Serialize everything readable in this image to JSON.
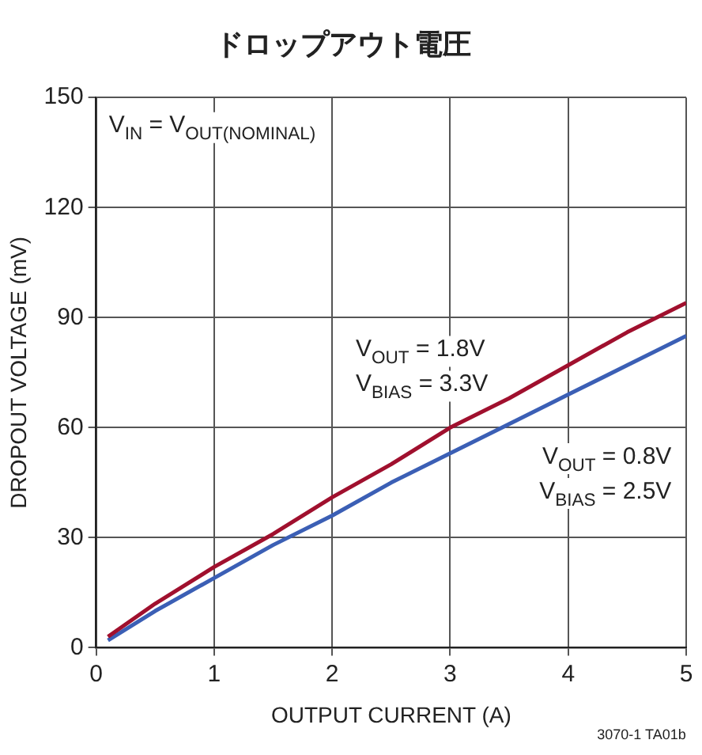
{
  "chart_data": {
    "type": "line",
    "title": "ドロップアウト電圧",
    "xlabel": "OUTPUT CURRENT (A)",
    "ylabel": "DROPOUT VOLTAGE (mV)",
    "x": [
      0.1,
      0.5,
      1,
      1.5,
      2,
      2.5,
      3,
      3.5,
      4,
      4.5,
      5
    ],
    "series": [
      {
        "name": "V$_{OUT}$ = 1.8V\nV$_{BIAS}$ = 3.3V",
        "color": "#a0102e",
        "values": [
          3,
          12,
          22,
          31,
          41,
          50,
          60,
          68,
          77,
          86,
          94
        ]
      },
      {
        "name": "V$_{OUT}$ = 0.8V\nV$_{BIAS}$ = 2.5V",
        "color": "#3b5fb5",
        "values": [
          2,
          10,
          19,
          28,
          36,
          45,
          53,
          61,
          69,
          77,
          85
        ]
      }
    ],
    "xlim": [
      0,
      5
    ],
    "xticks": [
      0,
      1,
      2,
      3,
      4,
      5
    ],
    "ylim": [
      0,
      150
    ],
    "yticks": [
      0,
      30,
      60,
      90,
      120,
      150
    ],
    "grid": true,
    "marker": "none",
    "line_style": "solid",
    "annotations": [
      "V$_{IN}$ = V$_{OUT(NOMINAL)}$",
      "3070-1 TA01b"
    ]
  }
}
